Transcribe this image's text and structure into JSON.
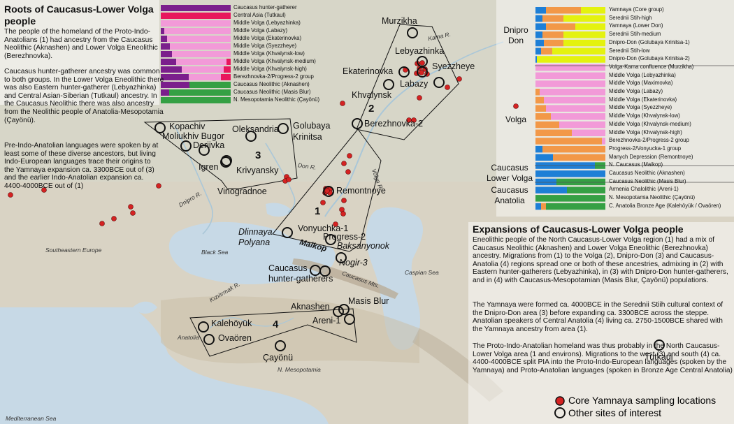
{
  "colors": {
    "caucasus_hg": "#7b1f8c",
    "central_asia": "#e8175d",
    "lower_volga": "#f29ad8",
    "caucasus_neolithic": "#35a044",
    "yamnaya_orange": "#f29848",
    "dnipro_yellow": "#e4f20f",
    "ehg_blue": "#1e7fd6",
    "anatolia_green": "#35a044",
    "core_dot": "#d42222"
  },
  "left_panel": {
    "title": "Roots of Caucasus-Lower Volga people",
    "p1": "The people of the homeland of the Proto-Indo-Anatolians (1) had ancestry from the Caucasus Neolithic (Aknashen) and Lower Volga Eneolithic (Berezhnovka).",
    "p2": "Caucasus hunter-gatherer ancestry was common to both groups. In the Lower Volga Eneolithic there was also Eastern hunter-gatherer (Lebyazhinka) and Central Asian-Siberian (Tutkaul) ancestry. In the Caucasus Neolithic there was also ancestry from the Neolithic people of Anatolia-Mesopotamia (Çayönü).",
    "p3": "Pre-Indo-Anatolian languages were spoken by at least some of these diverse ancestors, but living Indo-European languages trace their origins to the Yamnaya expansion ca. 3300BCE out of (3) and the earlier Indo-Anatolian expansion ca. 4400-4000BCE out of (1)"
  },
  "left_chart": {
    "rows": [
      {
        "label": "Caucasus hunter-gatherer",
        "segs": [
          {
            "c": "caucasus_hg",
            "v": 1.0
          }
        ]
      },
      {
        "label": "Central Asia (Tutkaul)",
        "segs": [
          {
            "c": "central_asia",
            "v": 1.0
          }
        ]
      },
      {
        "label": "Middle Volga (Lebyazhinka)",
        "segs": [
          {
            "c": "lower_volga",
            "v": 1.0
          }
        ]
      },
      {
        "label": "Middle Volga (Labazy)",
        "segs": [
          {
            "c": "caucasus_hg",
            "v": 0.05
          },
          {
            "c": "lower_volga",
            "v": 0.95
          }
        ]
      },
      {
        "label": "Middle Volga (Ekaterinovka)",
        "segs": [
          {
            "c": "caucasus_hg",
            "v": 0.09
          },
          {
            "c": "lower_volga",
            "v": 0.91
          }
        ]
      },
      {
        "label": "Middle Volga (Syezzheye)",
        "segs": [
          {
            "c": "caucasus_hg",
            "v": 0.13
          },
          {
            "c": "lower_volga",
            "v": 0.87
          }
        ]
      },
      {
        "label": "Middle Volga (Khvalynsk-low)",
        "segs": [
          {
            "c": "caucasus_hg",
            "v": 0.16
          },
          {
            "c": "lower_volga",
            "v": 0.84
          }
        ]
      },
      {
        "label": "Middle Volga (Khvalynsk-medium)",
        "segs": [
          {
            "c": "caucasus_hg",
            "v": 0.22
          },
          {
            "c": "lower_volga",
            "v": 0.72
          },
          {
            "c": "central_asia",
            "v": 0.06
          }
        ]
      },
      {
        "label": "Middle Volga (Khvalynsk-high)",
        "segs": [
          {
            "c": "caucasus_hg",
            "v": 0.3
          },
          {
            "c": "lower_volga",
            "v": 0.6
          },
          {
            "c": "central_asia",
            "v": 0.1
          }
        ]
      },
      {
        "label": "Berezhnovka-2/Progress-2 group",
        "segs": [
          {
            "c": "caucasus_hg",
            "v": 0.4
          },
          {
            "c": "lower_volga",
            "v": 0.46
          },
          {
            "c": "central_asia",
            "v": 0.14
          }
        ]
      },
      {
        "label": "Caucasus Neolithic (Aknashen)",
        "segs": [
          {
            "c": "caucasus_hg",
            "v": 0.41
          },
          {
            "c": "caucasus_neolithic",
            "v": 0.59
          }
        ]
      },
      {
        "label": "Caucasus Neolithic (Masis Blur)",
        "segs": [
          {
            "c": "caucasus_hg",
            "v": 0.12
          },
          {
            "c": "caucasus_neolithic",
            "v": 0.88
          }
        ]
      },
      {
        "label": "N. Mesopotamia Neolithic (Çayönü)",
        "segs": [
          {
            "c": "caucasus_neolithic",
            "v": 1.0
          }
        ]
      }
    ]
  },
  "right_chart": {
    "groups": [
      {
        "label_1": "Dnipro",
        "label_2": "Don"
      },
      {
        "label_1": "Volga",
        "label_2": ""
      },
      {
        "label_1": "Caucasus",
        "label_2": "Lower Volga"
      },
      {
        "label_1": "Caucasus",
        "label_2": "Anatolia"
      }
    ],
    "rows": [
      {
        "label": "Yamnaya (Core group)",
        "segs": [
          {
            "c": "ehg_blue",
            "v": 0.15
          },
          {
            "c": "yamnaya_orange",
            "v": 0.5
          },
          {
            "c": "dnipro_yellow",
            "v": 0.35
          }
        ]
      },
      {
        "label": "Serednii Stih-high",
        "segs": [
          {
            "c": "ehg_blue",
            "v": 0.1
          },
          {
            "c": "yamnaya_orange",
            "v": 0.3
          },
          {
            "c": "dnipro_yellow",
            "v": 0.6
          }
        ]
      },
      {
        "label": "Yamnaya (Lower Don)",
        "segs": [
          {
            "c": "ehg_blue",
            "v": 0.15
          },
          {
            "c": "yamnaya_orange",
            "v": 0.42
          },
          {
            "c": "dnipro_yellow",
            "v": 0.43
          }
        ]
      },
      {
        "label": "Serednii Stih-medium",
        "segs": [
          {
            "c": "ehg_blue",
            "v": 0.1
          },
          {
            "c": "yamnaya_orange",
            "v": 0.3
          },
          {
            "c": "dnipro_yellow",
            "v": 0.6
          }
        ]
      },
      {
        "label": "Dnipro-Don (Golubaya Krinitsa-1)",
        "segs": [
          {
            "c": "ehg_blue",
            "v": 0.12
          },
          {
            "c": "yamnaya_orange",
            "v": 0.28
          },
          {
            "c": "dnipro_yellow",
            "v": 0.6
          }
        ]
      },
      {
        "label": "Serednii Stih-low",
        "segs": [
          {
            "c": "ehg_blue",
            "v": 0.08
          },
          {
            "c": "yamnaya_orange",
            "v": 0.16
          },
          {
            "c": "dnipro_yellow",
            "v": 0.76
          }
        ]
      },
      {
        "label": "Dnipro-Don (Golubaya Krinitsa-2)",
        "segs": [
          {
            "c": "ehg_blue",
            "v": 0.02
          },
          {
            "c": "dnipro_yellow",
            "v": 0.98
          }
        ]
      },
      {
        "label": "Volga-Kama confluence (Murzikha)",
        "segs": [
          {
            "c": "lower_volga",
            "v": 1.0
          }
        ]
      },
      {
        "label": "Middle Volga (Lebyazhinka)",
        "segs": [
          {
            "c": "lower_volga",
            "v": 1.0
          }
        ]
      },
      {
        "label": "Middle Volga (Maximovka)",
        "segs": [
          {
            "c": "lower_volga",
            "v": 1.0
          }
        ]
      },
      {
        "label": "Middle Volga (Labazy)",
        "segs": [
          {
            "c": "yamnaya_orange",
            "v": 0.06
          },
          {
            "c": "lower_volga",
            "v": 0.94
          }
        ]
      },
      {
        "label": "Middle Volga (Ekaterinovka)",
        "segs": [
          {
            "c": "yamnaya_orange",
            "v": 0.12
          },
          {
            "c": "lower_volga",
            "v": 0.88
          }
        ]
      },
      {
        "label": "Middle Volga (Syezzheye)",
        "segs": [
          {
            "c": "yamnaya_orange",
            "v": 0.15
          },
          {
            "c": "lower_volga",
            "v": 0.85
          }
        ]
      },
      {
        "label": "Middle Volga (Khvalynsk-low)",
        "segs": [
          {
            "c": "yamnaya_orange",
            "v": 0.22
          },
          {
            "c": "lower_volga",
            "v": 0.78
          }
        ]
      },
      {
        "label": "Middle Volga (Khvalynsk-medium)",
        "segs": [
          {
            "c": "yamnaya_orange",
            "v": 0.34
          },
          {
            "c": "lower_volga",
            "v": 0.66
          }
        ]
      },
      {
        "label": "Middle Volga (Khvalynsk-high)",
        "segs": [
          {
            "c": "yamnaya_orange",
            "v": 0.52
          },
          {
            "c": "lower_volga",
            "v": 0.48
          }
        ]
      },
      {
        "label": "Berezhnovka-2/Progress-2 group",
        "segs": [
          {
            "c": "yamnaya_orange",
            "v": 0.95
          },
          {
            "c": "lower_volga",
            "v": 0.05
          }
        ]
      },
      {
        "label": "Progress-2/Vonyucka-1 group",
        "segs": [
          {
            "c": "ehg_blue",
            "v": 0.1
          },
          {
            "c": "yamnaya_orange",
            "v": 0.9
          }
        ]
      },
      {
        "label": "Manych Depression (Remontnoye)",
        "segs": [
          {
            "c": "ehg_blue",
            "v": 0.25
          },
          {
            "c": "yamnaya_orange",
            "v": 0.75
          }
        ]
      },
      {
        "label": "N. Caucasus (Maikop)",
        "segs": [
          {
            "c": "ehg_blue",
            "v": 0.85
          },
          {
            "c": "caucasus_neolithic",
            "v": 0.15
          }
        ]
      },
      {
        "label": "Caucasus Neolithic (Aknashen)",
        "segs": [
          {
            "c": "ehg_blue",
            "v": 1.0
          }
        ]
      },
      {
        "label": "Caucasus Neolithic (Masis Blur)",
        "segs": [
          {
            "c": "ehg_blue",
            "v": 0.3
          },
          {
            "c": "caucasus_neolithic",
            "v": 0.7
          }
        ]
      },
      {
        "label": "Armenia Chalolithic (Areni-1)",
        "segs": [
          {
            "c": "ehg_blue",
            "v": 0.45
          },
          {
            "c": "caucasus_neolithic",
            "v": 0.55
          }
        ]
      },
      {
        "label": "N. Mesopotamia Neolithic (Çayönü)",
        "segs": [
          {
            "c": "caucasus_neolithic",
            "v": 1.0
          }
        ]
      },
      {
        "label": "C. Anatolia Bronze Age (Kalehöyük / Ovaören)",
        "segs": [
          {
            "c": "ehg_blue",
            "v": 0.08
          },
          {
            "c": "yamnaya_orange",
            "v": 0.07
          },
          {
            "c": "caucasus_neolithic",
            "v": 0.85
          }
        ]
      }
    ]
  },
  "right_panel": {
    "title": "Expansions of Caucasus-Lower Volga people",
    "p1": "Eneolithic people of the North Caucasus-Lower Volga region (1) had a mix of Caucasus Neolithic (Aknashen) and Lower Volga Eneolithic (Berezhnovka) ancestry. Migrations from (1) to the Volga (2), Dnipro-Don (3) and Caucasus-Anatolia (4) regions spread one or both of these ancestries, admixing in (2) with Eastern hunter-gatherers (Lebyazhinka), in (3) with Dnipro-Don hunter-gatherers, and in (4) with Caucasus-Mesopotamian (Masis Blur, Çayönü) populations.",
    "p2": "The Yamnaya were formed ca. 4000BCE in the Serednii Stiih cultural context of the Dnipro-Don area (3) before expanding ca. 3300BCE across the steppe. Anatolian speakers of Central Anatolia (4) living ca. 2750-1500BCE shared with the Yamnaya ancestry from area (1).",
    "p3": "The Proto-Indo-Anatolian homeland was thus probably in the North Caucasus-Lower Volga area (1 and environs). Migrations to the west (3) and south (4) ca. 4400-4000BCE split PIA into the Proto-Indo-European languages (spoken by the Yamnaya) and Proto-Anatolian languages (spoken in Bronze Age Central Anatolia)"
  },
  "legend": {
    "core": "Core Yamnaya sampling locations",
    "other": "Other sites of interest"
  },
  "sites": {
    "murzikha": "Murzikha",
    "lebyazhinka": "Lebyazhinka",
    "ekaterinovka": "Ekaterinovka",
    "syezzheye": "Syezzheye",
    "labazy": "Labazy",
    "khvalynsk": "Khvalynsk",
    "berezhnovka": "Berezhnovka-2",
    "kopachiv": "Kopachiv",
    "moliukhiv": "Moliukhiv Bugor",
    "oleksandria": "Oleksandria",
    "golubaya_1": "Golubaya",
    "golubaya_2": "Krinitsa",
    "deriivka": "Deriivka",
    "igren": "Igren",
    "krivyansky": "Krivyansky",
    "vinogradnoe": "Vinogradnoe",
    "remontnoye": "Remontnoye",
    "dlinnaya_1": "Dlinnaya",
    "dlinnaya_2": "Polyana",
    "vonyuchka": "Vonyuchka-1",
    "progress": "Progress-2",
    "maikop": "Maikop",
    "baksanyonok": "Baksanyonok",
    "nogir": "Nogir-3",
    "cauc_hg_1": "Caucasus",
    "cauc_hg_2": "hunter-gatherers",
    "aknashen": "Aknashen",
    "masis": "Masis Blur",
    "areni": "Areni-1",
    "kalehoyuk": "Kalehöyük",
    "ovaoren": "Ovaören",
    "cayonu": "Çayönü",
    "tutkaul": "Tutkaul"
  },
  "regions": {
    "r1": "1",
    "r2": "2",
    "r3": "3",
    "r4": "4"
  },
  "geo": {
    "kama": "Kama R.",
    "don": "Don R.",
    "volga": "Volga R.",
    "dnipro": "Dnipro R.",
    "se_europe": "Southeastern Europe",
    "black_sea": "Black Sea",
    "caspian": "Caspian Sea",
    "caucasus_mts": "Caucasus Mts.",
    "kizilirmak": "Kızılırmak R.",
    "anatolia": "Anatolia",
    "n_meso": "N. Mesopotamia",
    "med": "Mediterranean Sea"
  }
}
